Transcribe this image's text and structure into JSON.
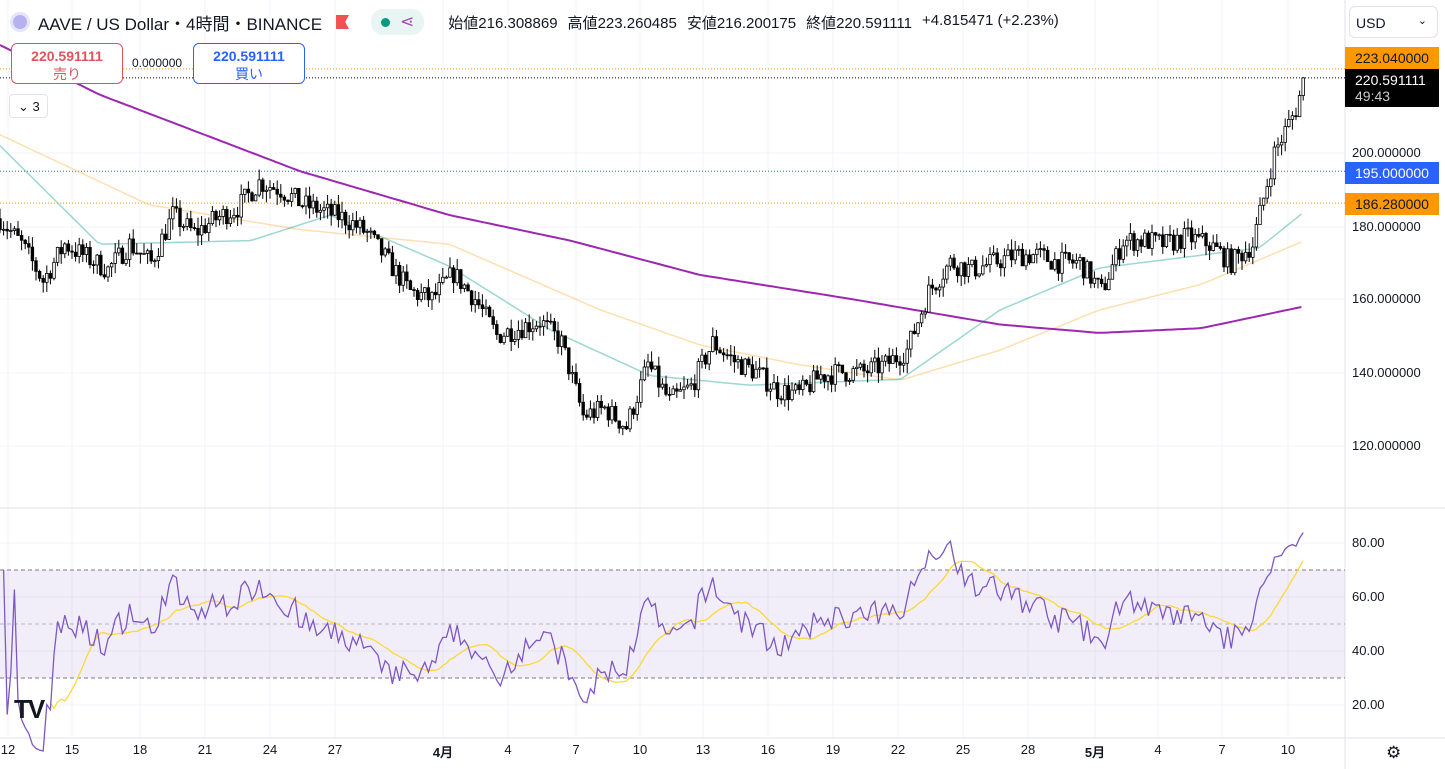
{
  "header": {
    "symbol": "AAVE / US Dollar・4時間・BINANCE",
    "open_label": "始値",
    "open": "216.308869",
    "high_label": "高値",
    "high": "223.260485",
    "low_label": "安値",
    "low": "216.200175",
    "close_label": "終値",
    "close": "220.591111",
    "change": "+4.815471 (+2.23%)"
  },
  "trade": {
    "sell_price": "220.591111",
    "sell_label": "売り",
    "spread": "0.000000",
    "buy_price": "220.591111",
    "buy_label": "買い"
  },
  "indicators_collapse": "3",
  "currency": "USD",
  "price_tags": {
    "high_line": "223.040000",
    "last": "220.591111",
    "countdown": "49:43",
    "blue_line": "195.000000",
    "low_line": "186.280000"
  },
  "price_axis": [
    "200.000000",
    "180.000000",
    "160.000000",
    "140.000000",
    "120.000000"
  ],
  "rsi_axis": [
    "80.00",
    "60.00",
    "40.00",
    "20.00"
  ],
  "time_axis": [
    "12",
    "15",
    "18",
    "21",
    "24",
    "27",
    "4月",
    "4",
    "7",
    "10",
    "13",
    "16",
    "19",
    "22",
    "25",
    "28",
    "5月",
    "4",
    "7",
    "10"
  ],
  "colors": {
    "up": "#ffffff",
    "down": "#000000",
    "ma_long": "#9c27b0",
    "ma_mid": "#26a69a",
    "ma_slow": "#ffb74d",
    "rsi": "#7e57c2",
    "rsi_ma": "#fdd835",
    "orange": "#ff9800",
    "blue": "#2962ff"
  },
  "chart_data": {
    "type": "candlestick",
    "x_unit": "days since Mar 12",
    "price_path": [
      [
        0,
        182
      ],
      [
        1,
        175
      ],
      [
        2,
        165
      ],
      [
        3,
        175
      ],
      [
        5,
        168
      ],
      [
        6,
        175
      ],
      [
        7,
        170
      ],
      [
        8,
        183
      ],
      [
        9,
        178
      ],
      [
        10,
        182
      ],
      [
        11,
        185
      ],
      [
        12,
        192
      ],
      [
        13,
        190
      ],
      [
        14,
        186
      ],
      [
        15,
        184
      ],
      [
        16,
        182
      ],
      [
        17,
        178
      ],
      [
        18,
        170
      ],
      [
        19,
        162
      ],
      [
        20,
        160
      ],
      [
        21,
        167
      ],
      [
        22,
        160
      ],
      [
        23,
        150
      ],
      [
        24,
        152
      ],
      [
        25,
        154
      ],
      [
        26,
        148
      ],
      [
        27,
        128
      ],
      [
        28,
        130
      ],
      [
        29,
        125
      ],
      [
        30,
        142
      ],
      [
        31,
        132
      ],
      [
        32,
        136
      ],
      [
        33,
        148
      ],
      [
        34,
        143
      ],
      [
        35,
        140
      ],
      [
        36,
        135
      ],
      [
        37,
        134
      ],
      [
        38,
        139
      ],
      [
        39,
        140
      ],
      [
        40,
        140
      ],
      [
        41,
        142
      ],
      [
        42,
        146
      ],
      [
        43,
        162
      ],
      [
        44,
        170
      ],
      [
        45,
        168
      ],
      [
        46,
        170
      ],
      [
        47,
        172
      ],
      [
        48,
        172
      ],
      [
        49,
        170
      ],
      [
        50,
        170
      ],
      [
        51,
        162
      ],
      [
        52,
        176
      ],
      [
        53,
        176
      ],
      [
        54,
        175
      ],
      [
        55,
        177
      ],
      [
        56,
        175
      ],
      [
        57,
        170
      ],
      [
        58,
        175
      ],
      [
        59,
        200
      ],
      [
        60,
        212
      ],
      [
        60.4,
        220.59
      ]
    ],
    "ma_long": [
      [
        0,
        229.6
      ],
      [
        4.6,
        216
      ],
      [
        13.9,
        195
      ],
      [
        20.8,
        183
      ],
      [
        26.4,
        176
      ],
      [
        32.4,
        166.6
      ],
      [
        39.4,
        160
      ],
      [
        46.3,
        153
      ],
      [
        50.9,
        150.7
      ],
      [
        55.6,
        152
      ],
      [
        60.4,
        158
      ]
    ],
    "ma_mid": [
      [
        0,
        202
      ],
      [
        4.6,
        175
      ],
      [
        11.6,
        176
      ],
      [
        15.3,
        183
      ],
      [
        20.8,
        169
      ],
      [
        25.5,
        151.5
      ],
      [
        30.1,
        139
      ],
      [
        34.7,
        136.4
      ],
      [
        41.7,
        138
      ],
      [
        46.3,
        157
      ],
      [
        50.9,
        168.5
      ],
      [
        55.6,
        172
      ],
      [
        58.3,
        174
      ],
      [
        60.4,
        184
      ]
    ],
    "ma_slow": [
      [
        0,
        205
      ],
      [
        6.9,
        185.8
      ],
      [
        13.9,
        179
      ],
      [
        20.8,
        175
      ],
      [
        27.8,
        157
      ],
      [
        32.4,
        147.4
      ],
      [
        37,
        142
      ],
      [
        41.7,
        137.8
      ],
      [
        46.3,
        146
      ],
      [
        50.9,
        157
      ],
      [
        55.6,
        164
      ],
      [
        60.4,
        176
      ]
    ],
    "price_range": [
      107,
      243
    ],
    "rsi_range": [
      10,
      90
    ]
  }
}
